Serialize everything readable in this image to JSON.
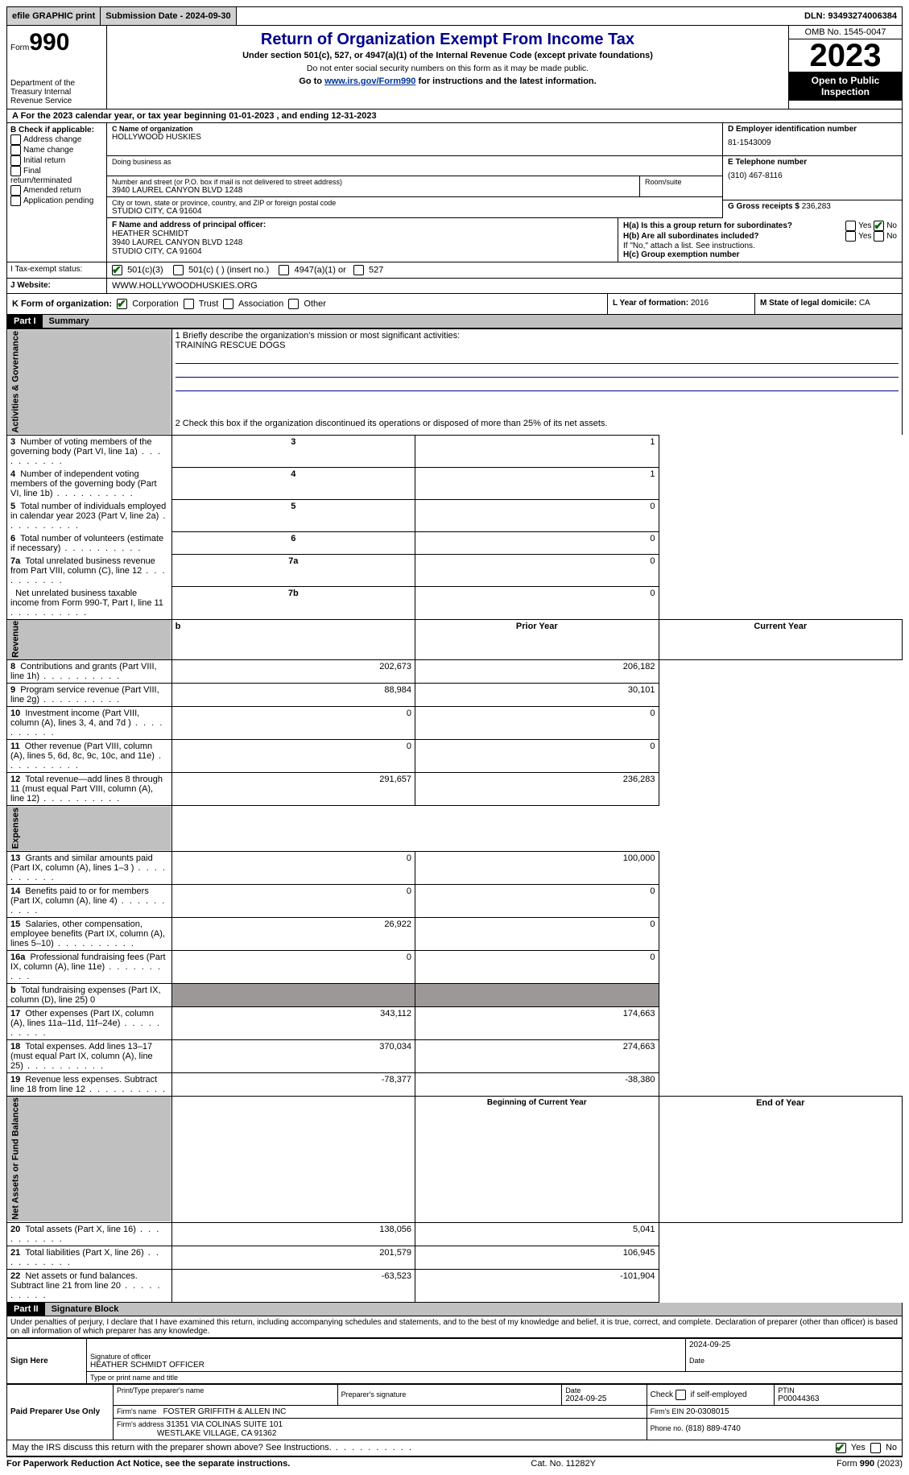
{
  "topbar": {
    "efile": "efile GRAPHIC print",
    "submission": "Submission Date - 2024-09-30",
    "dln": "DLN: 93493274006384"
  },
  "header": {
    "form_prefix": "Form",
    "form_num": "990",
    "dept": "Department of the Treasury Internal Revenue Service",
    "title": "Return of Organization Exempt From Income Tax",
    "subtitle": "Under section 501(c), 527, or 4947(a)(1) of the Internal Revenue Code (except private foundations)",
    "note1": "Do not enter social security numbers on this form as it may be made public.",
    "note2_pre": "Go to ",
    "note2_link": "www.irs.gov/Form990",
    "note2_post": " for instructions and the latest information.",
    "omb": "OMB No. 1545-0047",
    "year": "2023",
    "open": "Open to Public Inspection"
  },
  "period": "A For the 2023 calendar year, or tax year beginning 01-01-2023     , and ending 12-31-2023",
  "boxB": {
    "label": "B Check if applicable:",
    "opts": [
      "Address change",
      "Name change",
      "Initial return",
      "Final return/terminated",
      "Amended return",
      "Application pending"
    ]
  },
  "boxC": {
    "name_label": "C Name of organization",
    "name": "HOLLYWOOD HUSKIES",
    "dba_label": "Doing business as",
    "dba": "",
    "street_label": "Number and street (or P.O. box if mail is not delivered to street address)",
    "room_label": "Room/suite",
    "street": "3940 LAUREL CANYON BLVD 1248",
    "city_label": "City or town, state or province, country, and ZIP or foreign postal code",
    "city": "STUDIO CITY, CA  91604"
  },
  "boxD": {
    "label": "D Employer identification number",
    "value": "81-1543009"
  },
  "boxE": {
    "label": "E Telephone number",
    "value": "(310) 467-8116"
  },
  "boxG": {
    "label": "G Gross receipts $",
    "value": "236,283"
  },
  "boxF": {
    "label": "F  Name and address of principal officer:",
    "line1": "HEATHER SCHMIDT",
    "line2": "3940 LAUREL CANYON BLVD 1248",
    "line3": "STUDIO CITY, CA  91604"
  },
  "boxH": {
    "ha": "H(a)  Is this a group return for subordinates?",
    "hb": "H(b)  Are all subordinates included?",
    "hb_note": "If \"No,\" attach a list. See instructions.",
    "hc": "H(c)  Group exemption number",
    "yes": "Yes",
    "no": "No"
  },
  "taxexempt": {
    "label": "I   Tax-exempt status:",
    "o1": "501(c)(3)",
    "o2": "501(c) (  ) (insert no.)",
    "o3": "4947(a)(1) or",
    "o4": "527"
  },
  "website": {
    "label": "J   Website:",
    "value": "WWW.HOLLYWOODHUSKIES.ORG"
  },
  "boxK": {
    "label": "K Form of organization:",
    "opts": [
      "Corporation",
      "Trust",
      "Association",
      "Other"
    ]
  },
  "boxL": {
    "label": "L Year of formation:",
    "value": "2016"
  },
  "boxM": {
    "label": "M State of legal domicile:",
    "value": "CA"
  },
  "part1": {
    "hdr": "Part I",
    "title": "Summary",
    "l1": "1  Briefly describe the organization's mission or most significant activities:",
    "mission": "TRAINING RESCUE DOGS",
    "l2": "2   Check this box        if the organization discontinued its operations or disposed of more than 25% of its net assets.",
    "rows_gov": [
      {
        "n": "3",
        "t": "Number of voting members of the governing body (Part VI, line 1a)",
        "k": "3",
        "v": "1"
      },
      {
        "n": "4",
        "t": "Number of independent voting members of the governing body (Part VI, line 1b)",
        "k": "4",
        "v": "1"
      },
      {
        "n": "5",
        "t": "Total number of individuals employed in calendar year 2023 (Part V, line 2a)",
        "k": "5",
        "v": "0"
      },
      {
        "n": "6",
        "t": "Total number of volunteers (estimate if necessary)",
        "k": "6",
        "v": "0"
      },
      {
        "n": "7a",
        "t": "Total unrelated business revenue from Part VIII, column (C), line 12",
        "k": "7a",
        "v": "0"
      },
      {
        "n": "",
        "t": "Net unrelated business taxable income from Form 990-T, Part I, line 11",
        "k": "7b",
        "v": "0"
      }
    ],
    "col_prior": "Prior Year",
    "col_curr": "Current Year",
    "col_beg": "Beginning of Current Year",
    "col_end": "End of Year",
    "rev": [
      {
        "n": "8",
        "t": "Contributions and grants (Part VIII, line 1h)",
        "p": "202,673",
        "c": "206,182"
      },
      {
        "n": "9",
        "t": "Program service revenue (Part VIII, line 2g)",
        "p": "88,984",
        "c": "30,101"
      },
      {
        "n": "10",
        "t": "Investment income (Part VIII, column (A), lines 3, 4, and 7d )",
        "p": "0",
        "c": "0"
      },
      {
        "n": "11",
        "t": "Other revenue (Part VIII, column (A), lines 5, 6d, 8c, 9c, 10c, and 11e)",
        "p": "0",
        "c": "0"
      },
      {
        "n": "12",
        "t": "Total revenue—add lines 8 through 11 (must equal Part VIII, column (A), line 12)",
        "p": "291,657",
        "c": "236,283"
      }
    ],
    "exp": [
      {
        "n": "13",
        "t": "Grants and similar amounts paid (Part IX, column (A), lines 1–3 )",
        "p": "0",
        "c": "100,000"
      },
      {
        "n": "14",
        "t": "Benefits paid to or for members (Part IX, column (A), line 4)",
        "p": "0",
        "c": "0"
      },
      {
        "n": "15",
        "t": "Salaries, other compensation, employee benefits (Part IX, column (A), lines 5–10)",
        "p": "26,922",
        "c": "0"
      },
      {
        "n": "16a",
        "t": "Professional fundraising fees (Part IX, column (A), line 11e)",
        "p": "0",
        "c": "0"
      },
      {
        "n": "b",
        "t": "Total fundraising expenses (Part IX, column (D), line 25) 0",
        "p": "",
        "c": "",
        "shade": true,
        "small": true
      },
      {
        "n": "17",
        "t": "Other expenses (Part IX, column (A), lines 11a–11d, 11f–24e)",
        "p": "343,112",
        "c": "174,663"
      },
      {
        "n": "18",
        "t": "Total expenses. Add lines 13–17 (must equal Part IX, column (A), line 25)",
        "p": "370,034",
        "c": "274,663"
      },
      {
        "n": "19",
        "t": "Revenue less expenses. Subtract line 18 from line 12",
        "p": "-78,377",
        "c": "-38,380"
      }
    ],
    "net": [
      {
        "n": "20",
        "t": "Total assets (Part X, line 16)",
        "p": "138,056",
        "c": "5,041"
      },
      {
        "n": "21",
        "t": "Total liabilities (Part X, line 26)",
        "p": "201,579",
        "c": "106,945"
      },
      {
        "n": "22",
        "t": "Net assets or fund balances. Subtract line 21 from line 20",
        "p": "-63,523",
        "c": "-101,904"
      }
    ],
    "vtab_gov": "Activities & Governance",
    "vtab_rev": "Revenue",
    "vtab_exp": "Expenses",
    "vtab_net": "Net Assets or Fund Balances"
  },
  "part2": {
    "hdr": "Part II",
    "title": "Signature Block",
    "decl": "Under penalties of perjury, I declare that I have examined this return, including accompanying schedules and statements, and to the best of my knowledge and belief, it is true, correct, and complete. Declaration of preparer (other than officer) is based on all information of which preparer has any knowledge.",
    "sign_here": "Sign Here",
    "sig_officer_lbl": "Signature of officer",
    "sig_officer": "HEATHER SCHMIDT OFFICER",
    "type_name_lbl": "Type or print name and title",
    "date_lbl": "Date",
    "date1": "2024-09-25",
    "paid": "Paid Preparer Use Only",
    "prep_name_lbl": "Print/Type preparer's name",
    "prep_sig_lbl": "Preparer's signature",
    "prep_date": "2024-09-25",
    "self_emp": "Check       if self-employed",
    "ptin_lbl": "PTIN",
    "ptin": "P00044363",
    "firm_name_lbl": "Firm's name",
    "firm_name": "FOSTER GRIFFITH & ALLEN INC",
    "firm_ein_lbl": "Firm's EIN",
    "firm_ein": "20-0308015",
    "firm_addr_lbl": "Firm's address",
    "firm_addr1": "31351 VIA COLINAS SUITE 101",
    "firm_addr2": "WESTLAKE VILLAGE, CA  91362",
    "phone_lbl": "Phone no.",
    "phone": "(818) 889-4740",
    "discuss": "May the IRS discuss this return with the preparer shown above? See Instructions.",
    "yes": "Yes",
    "no": "No"
  },
  "footer": {
    "left": "For Paperwork Reduction Act Notice, see the separate instructions.",
    "mid": "Cat. No. 11282Y",
    "right_pre": "Form ",
    "right_b": "990",
    "right_post": " (2023)"
  }
}
